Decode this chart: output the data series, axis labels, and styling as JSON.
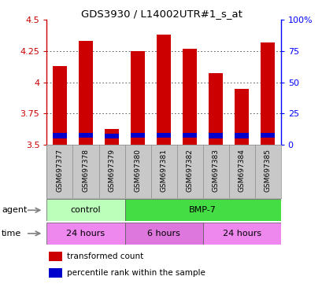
{
  "title": "GDS3930 / L14002UTR#1_s_at",
  "samples": [
    "GSM697377",
    "GSM697378",
    "GSM697379",
    "GSM697380",
    "GSM697381",
    "GSM697382",
    "GSM697383",
    "GSM697384",
    "GSM697385"
  ],
  "bar_bottom": 3.5,
  "transformed_counts": [
    4.13,
    4.33,
    3.63,
    4.25,
    4.38,
    4.27,
    4.07,
    3.95,
    4.32
  ],
  "percentile_bottoms": [
    3.555,
    3.558,
    3.552,
    3.558,
    3.558,
    3.558,
    3.555,
    3.555,
    3.558
  ],
  "percentile_heights": [
    0.04,
    0.04,
    0.04,
    0.04,
    0.04,
    0.04,
    0.04,
    0.04,
    0.04
  ],
  "bar_color_red": "#cc0000",
  "bar_color_blue": "#0000cc",
  "ylim_left": [
    3.5,
    4.5
  ],
  "ylim_right": [
    0,
    100
  ],
  "yticks_left": [
    3.5,
    3.75,
    4.0,
    4.25,
    4.5
  ],
  "yticks_right": [
    0,
    25,
    50,
    75,
    100
  ],
  "ytick_labels_left": [
    "3.5",
    "3.75",
    "4",
    "4.25",
    "4.5"
  ],
  "ytick_labels_right": [
    "0",
    "25",
    "50",
    "75",
    "100%"
  ],
  "agent_labels": [
    {
      "label": "control",
      "start": 0,
      "end": 3,
      "color": "#bbffbb"
    },
    {
      "label": "BMP-7",
      "start": 3,
      "end": 9,
      "color": "#44dd44"
    }
  ],
  "time_labels": [
    {
      "label": "24 hours",
      "start": 0,
      "end": 3,
      "color": "#ee88ee"
    },
    {
      "label": "6 hours",
      "start": 3,
      "end": 6,
      "color": "#dd77dd"
    },
    {
      "label": "24 hours",
      "start": 6,
      "end": 9,
      "color": "#ee88ee"
    }
  ],
  "legend_items": [
    {
      "color": "#cc0000",
      "label": "transformed count"
    },
    {
      "color": "#0000cc",
      "label": "percentile rank within the sample"
    }
  ],
  "agent_row_label": "agent",
  "time_row_label": "time",
  "left_axis_color": "#cc0000",
  "right_axis_color": "#0000ff",
  "grid_color": "#000000",
  "bar_width": 0.55,
  "bg_color_chart": "#ffffff",
  "bg_color_sample": "#c8c8c8",
  "fig_width": 4.1,
  "fig_height": 3.84,
  "dpi": 100
}
